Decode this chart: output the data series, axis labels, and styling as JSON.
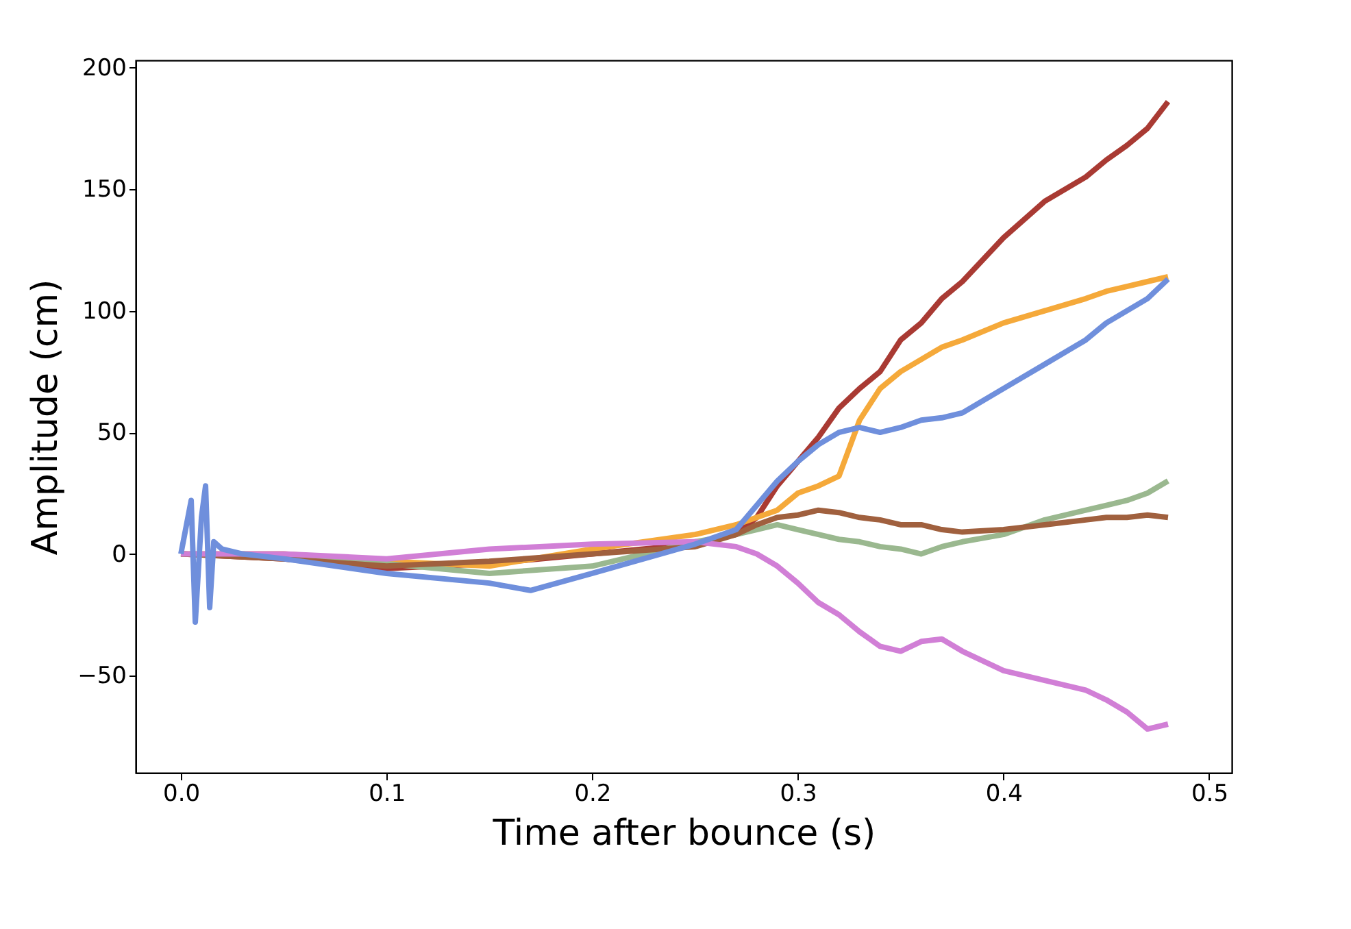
{
  "chart_data": {
    "type": "line",
    "xlabel": "Time after bounce (s)",
    "ylabel": "Amplitude (cm)",
    "x": [
      0,
      0.05,
      0.1,
      0.15,
      0.2,
      0.25,
      0.27,
      0.28,
      0.29,
      0.3,
      0.31,
      0.32,
      0.33,
      0.34,
      0.35,
      0.36,
      0.37,
      0.38,
      0.4,
      0.42,
      0.44,
      0.45,
      0.46,
      0.47,
      0.48
    ],
    "series": [
      {
        "color": "#a93a33",
        "values": [
          0,
          -2,
          -6,
          -4,
          0,
          4,
          8,
          15,
          28,
          38,
          48,
          60,
          68,
          75,
          88,
          95,
          105,
          112,
          130,
          145,
          155,
          162,
          168,
          175,
          186
        ]
      },
      {
        "color": "#f5a93a",
        "values": [
          0,
          0,
          -3,
          -5,
          2,
          8,
          12,
          15,
          18,
          25,
          28,
          32,
          55,
          68,
          75,
          80,
          85,
          88,
          95,
          100,
          105,
          108,
          110,
          112,
          114
        ]
      },
      {
        "color": "#9ab88f",
        "values": [
          0,
          -1,
          -4,
          -8,
          -5,
          5,
          8,
          10,
          12,
          10,
          8,
          6,
          5,
          3,
          2,
          0,
          3,
          5,
          8,
          14,
          18,
          20,
          22,
          25,
          30
        ]
      },
      {
        "color": "#a0603e",
        "values": [
          0,
          -2,
          -5,
          -3,
          0,
          3,
          8,
          12,
          15,
          16,
          18,
          17,
          15,
          14,
          12,
          12,
          10,
          9,
          10,
          12,
          14,
          15,
          15,
          16,
          15
        ]
      },
      {
        "color": "#d17fd6",
        "values": [
          0,
          0,
          -2,
          2,
          4,
          5,
          3,
          0,
          -5,
          -12,
          -20,
          -25,
          -32,
          -38,
          -40,
          -36,
          -35,
          -40,
          -48,
          -52,
          -56,
          -60,
          -65,
          -72,
          -70
        ]
      },
      {
        "color": "#6f8fdc",
        "x": [
          0,
          0.005,
          0.007,
          0.01,
          0.012,
          0.014,
          0.016,
          0.02,
          0.03,
          0.05,
          0.1,
          0.15,
          0.17,
          0.2,
          0.25,
          0.27,
          0.28,
          0.29,
          0.3,
          0.31,
          0.32,
          0.33,
          0.34,
          0.35,
          0.36,
          0.37,
          0.38,
          0.4,
          0.42,
          0.44,
          0.45,
          0.46,
          0.47,
          0.48
        ],
        "values": [
          0,
          22,
          -28,
          15,
          28,
          -22,
          5,
          2,
          0,
          -2,
          -8,
          -12,
          -15,
          -8,
          4,
          10,
          20,
          30,
          38,
          45,
          50,
          52,
          50,
          52,
          55,
          56,
          58,
          68,
          78,
          88,
          95,
          100,
          105,
          113
        ]
      }
    ],
    "xlim": [
      -0.022,
      0.511
    ],
    "ylim": [
      -90,
      203
    ],
    "xticks": [
      {
        "value": 0,
        "label": "0.0"
      },
      {
        "value": 0.1,
        "label": "0.1"
      },
      {
        "value": 0.2,
        "label": "0.2"
      },
      {
        "value": 0.3,
        "label": "0.3"
      },
      {
        "value": 0.4,
        "label": "0.4"
      },
      {
        "value": 0.5,
        "label": "0.5"
      }
    ],
    "yticks": [
      {
        "value": -50,
        "label": "−50"
      },
      0,
      50,
      100,
      150,
      200
    ],
    "grid": false,
    "legend": false,
    "marker": "none",
    "line_style": "solid"
  }
}
